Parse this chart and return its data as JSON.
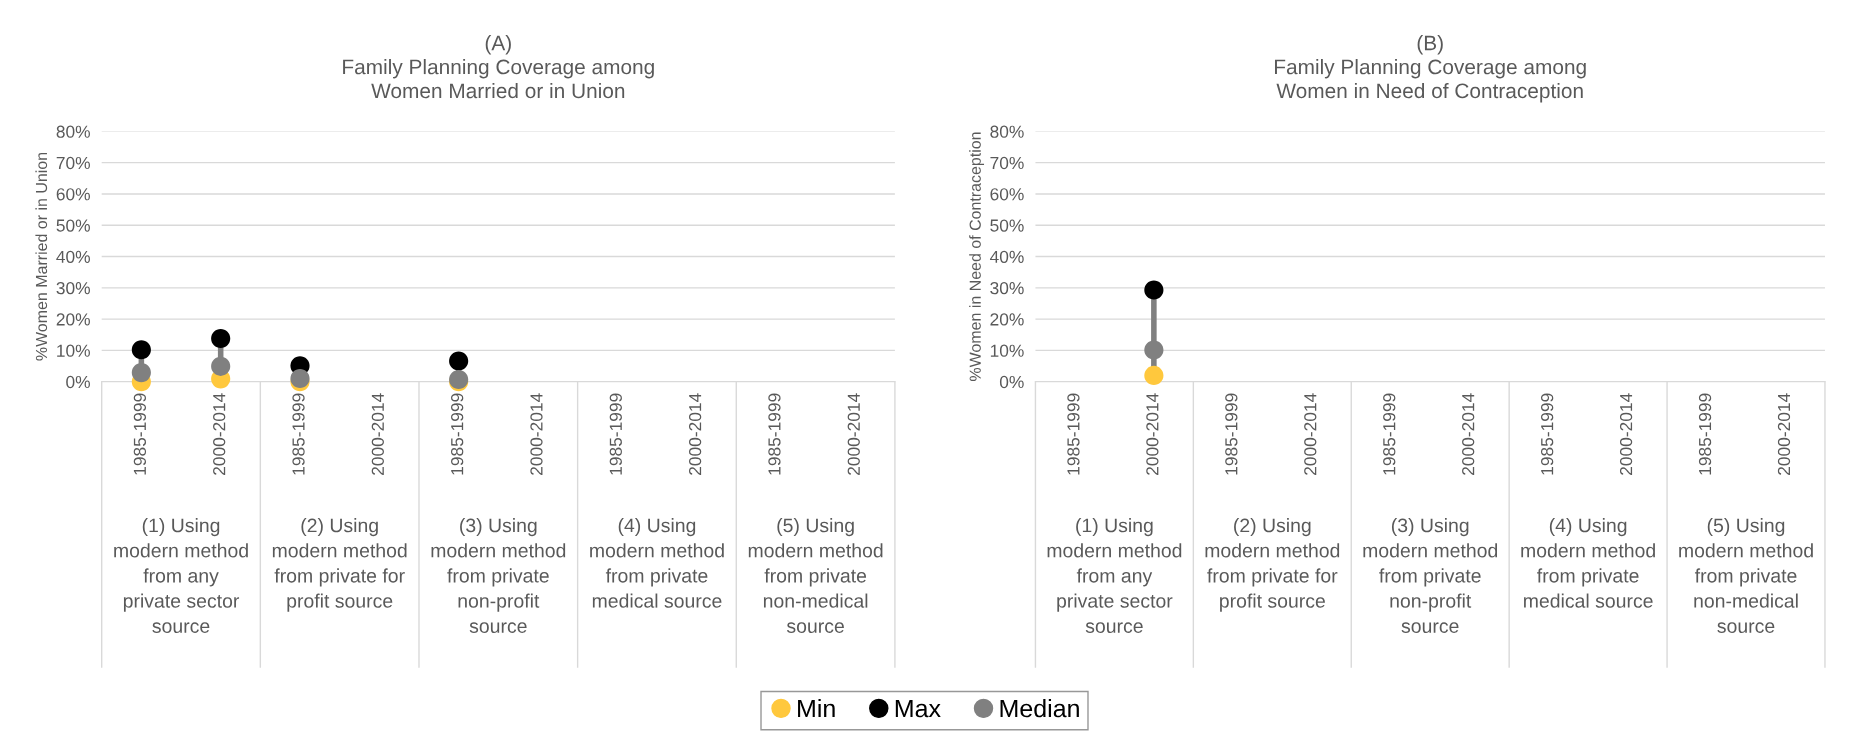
{
  "chart_data": [
    {
      "type": "scatter",
      "title": "(A)\nFamily Planning Coverage among\nWomen Married or in Union",
      "ylabel": "%Women Married or in Union",
      "categories": [
        "1985-1999",
        "2000-2014",
        "1985-1999",
        "2000-2014",
        "1985-1999",
        "2000-2014",
        "1985-1999",
        "2000-2014",
        "1985-1999",
        "2000-2014"
      ],
      "annotations": [
        "(1) Using\nmodern method\nfrom any\nprivate sector\nsource",
        "(2) Using\nmodern method\nfrom private for\nprofit source",
        "(3) Using\nmodern method\nfrom private\nnon-profit\nsource",
        "(4) Using\nmodern method\nfrom private\nmedical source",
        "(5) Using\nmodern method\nfrom private\nnon-medical\nsource"
      ],
      "series": [
        {
          "name": "Min",
          "color": "#ffc83d",
          "values": [
            0,
            0.9,
            0,
            null,
            0,
            null,
            null,
            null,
            null,
            null
          ]
        },
        {
          "name": "Max",
          "color": "#000000",
          "values": [
            10.2,
            13.8,
            5.1,
            null,
            6.6,
            null,
            null,
            null,
            null,
            null
          ]
        },
        {
          "name": "Median",
          "color": "#808080",
          "values": [
            2.9,
            4.9,
            1.0,
            null,
            0.7,
            null,
            null,
            null,
            null,
            null
          ]
        }
      ],
      "ylim": [
        0,
        80
      ],
      "yticks": [
        {
          "value": 0,
          "label": "0%"
        },
        {
          "value": 10,
          "label": "10%"
        },
        {
          "value": 20,
          "label": "20%"
        },
        {
          "value": 30,
          "label": "30%"
        },
        {
          "value": 40,
          "label": "40%"
        },
        {
          "value": 50,
          "label": "50%"
        },
        {
          "value": 60,
          "label": "60%"
        },
        {
          "value": 70,
          "label": "70%"
        },
        {
          "value": 80,
          "label": "80%"
        }
      ],
      "grid": "y",
      "legend": "bottom",
      "marker": "circle"
    },
    {
      "type": "scatter",
      "title": "(B)\nFamily Planning Coverage among\nWomen in Need of Contraception",
      "ylabel": "%Women in Need of Contraception",
      "categories": [
        "1985-1999",
        "2000-2014",
        "1985-1999",
        "2000-2014",
        "1985-1999",
        "2000-2014",
        "1985-1999",
        "2000-2014",
        "1985-1999",
        "2000-2014"
      ],
      "annotations": [
        "(1) Using\nmodern method\nfrom any\nprivate sector\nsource",
        "(2) Using\nmodern method\nfrom private for\nprofit source",
        "(3) Using\nmodern method\nfrom private\nnon-profit\nsource",
        "(4) Using\nmodern method\nfrom private\nmedical source",
        "(5) Using\nmodern method\nfrom private\nnon-medical\nsource"
      ],
      "series": [
        {
          "name": "Min",
          "color": "#ffc83d",
          "values": [
            null,
            2.0,
            null,
            null,
            null,
            null,
            null,
            null,
            null,
            null
          ]
        },
        {
          "name": "Max",
          "color": "#000000",
          "values": [
            null,
            29.3,
            null,
            null,
            null,
            null,
            null,
            null,
            null,
            null
          ]
        },
        {
          "name": "Median",
          "color": "#808080",
          "values": [
            null,
            10.1,
            null,
            null,
            null,
            null,
            null,
            null,
            null,
            null
          ]
        }
      ],
      "ylim": [
        0,
        80
      ],
      "yticks": [
        {
          "value": 0,
          "label": "0%"
        },
        {
          "value": 10,
          "label": "10%"
        },
        {
          "value": 20,
          "label": "20%"
        },
        {
          "value": 30,
          "label": "30%"
        },
        {
          "value": 40,
          "label": "40%"
        },
        {
          "value": 50,
          "label": "50%"
        },
        {
          "value": 60,
          "label": "60%"
        },
        {
          "value": 70,
          "label": "70%"
        },
        {
          "value": 80,
          "label": "80%"
        }
      ],
      "grid": "y",
      "legend": false,
      "marker": "circle"
    }
  ]
}
